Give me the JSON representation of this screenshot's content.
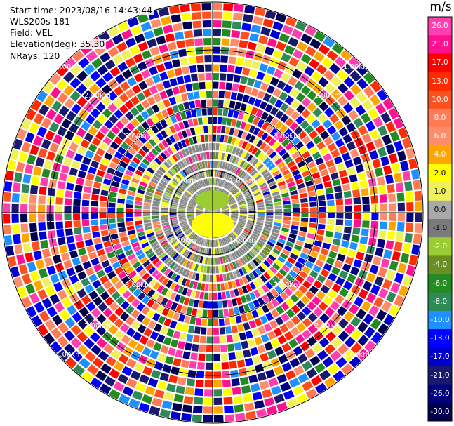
{
  "info": {
    "start_time": "Start time: 2023/08/16 14:43:44",
    "site": "WLS200s-181",
    "field": "Field: VEL",
    "elevation": "Elevation(deg): 35.30",
    "nrays": "NRays: 120"
  },
  "chart_data": {
    "type": "heatmap",
    "projection": "polar-ppi",
    "nrays": 120,
    "range_rings": [
      "1.00km",
      "2.00km",
      "3.00km"
    ],
    "colorbar": {
      "unit": "m/s",
      "ticks": [
        "26.0",
        "21.0",
        "17.0",
        "13.0",
        "10.0",
        "8.0",
        "6.0",
        "4.0",
        "2.0",
        "1.0",
        "0.0",
        "-1.0",
        "-2.0",
        "-4.0",
        "-6.0",
        "-8.0",
        "-10.0",
        "-13.0",
        "-17.0",
        "-21.0",
        "-26.0",
        "-30.0"
      ],
      "colors": [
        "#ff3fb0",
        "#ff1090",
        "#ff0000",
        "#ff2a00",
        "#ff5020",
        "#ff7a55",
        "#ff8c6a",
        "#ffa500",
        "#ffff00",
        "#f0f05a",
        "#a9a9a9",
        "#7a7a7a",
        "#9acd32",
        "#6b8e23",
        "#228b22",
        "#2e8b57",
        "#1e90ff",
        "#0000ff",
        "#0000cd",
        "#191970",
        "#000080",
        "#000050"
      ]
    }
  }
}
